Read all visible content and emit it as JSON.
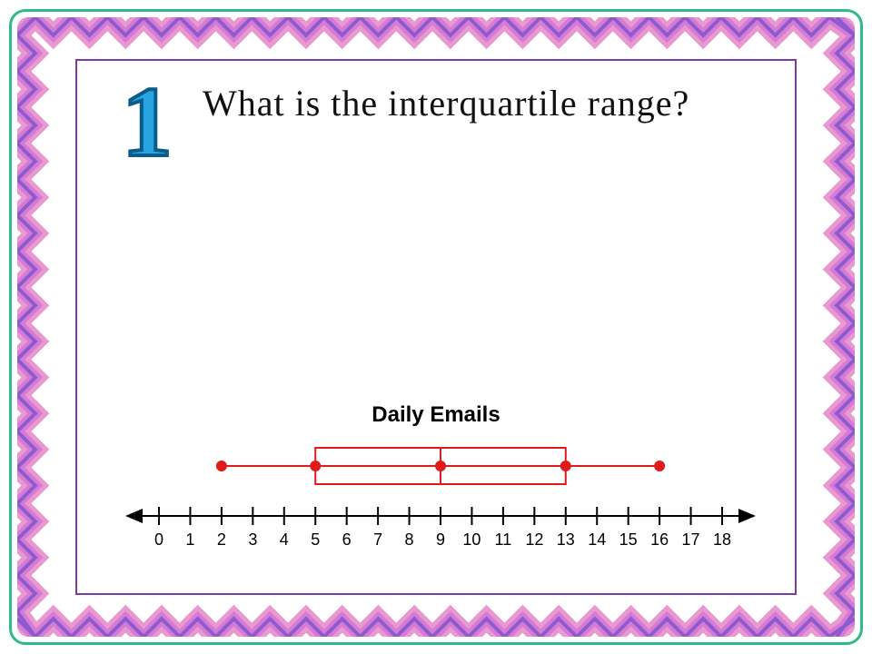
{
  "question_number": "1",
  "question_text": "What is the interquartile range?",
  "chart": {
    "type": "boxplot",
    "title": "Daily Emails",
    "title_fontsize": 24,
    "title_color": "#000000",
    "axis_min": 0,
    "axis_max": 18,
    "tick_step": 1,
    "tick_labels": [
      "0",
      "1",
      "2",
      "3",
      "4",
      "5",
      "6",
      "7",
      "8",
      "9",
      "10",
      "11",
      "12",
      "13",
      "14",
      "15",
      "16",
      "17",
      "18"
    ],
    "min": 2,
    "q1": 5,
    "median": 9,
    "q3": 13,
    "max": 16,
    "box_stroke": "#e01b1b",
    "box_fill": "none",
    "whisker_color": "#e01b1b",
    "point_color": "#e01b1b",
    "point_radius": 6,
    "line_width": 2,
    "axis_color": "#000000",
    "axis_line_width": 2,
    "tick_fontsize": 18,
    "background_color": "#ffffff"
  },
  "border": {
    "outer_stroke": "#2dbb8c",
    "zigzag_colors": [
      "#8e5bcf",
      "#d67bd5",
      "#e89ad0"
    ],
    "inner_stroke": "#7b3fa0"
  }
}
